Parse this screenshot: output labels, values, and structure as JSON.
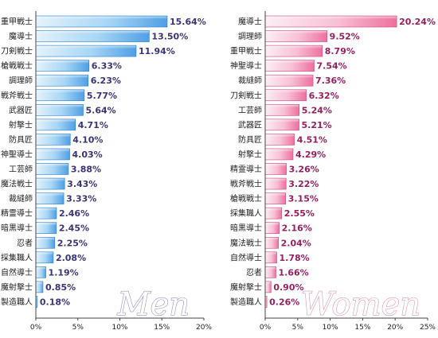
{
  "chart_data": [
    {
      "type": "bar",
      "orientation": "horizontal",
      "title": "Men",
      "accent_color": "#5aa6e6",
      "label_color": "#3a3577",
      "categories": [
        "重甲戦士",
        "魔導士",
        "刀剣戦士",
        "槍戦戦士",
        "調理師",
        "戦斧戦士",
        "武器匠",
        "射撃士",
        "防具匠",
        "神聖導士",
        "工芸師",
        "魔法戦士",
        "裁縫師",
        "精霊導士",
        "暗黒導士",
        "忍者",
        "採集職人",
        "自然導士",
        "魔射撃士",
        "製造職人"
      ],
      "values": [
        15.64,
        13.5,
        11.94,
        6.33,
        6.23,
        5.77,
        5.64,
        4.71,
        4.1,
        4.03,
        3.88,
        3.43,
        3.33,
        2.46,
        2.45,
        2.25,
        2.08,
        1.19,
        0.85,
        0.18
      ],
      "value_labels": [
        "15.64%",
        "13.50%",
        "11.94%",
        "6.33%",
        "6.23%",
        "5.77%",
        "5.64%",
        "4.71%",
        "4.10%",
        "4.03%",
        "3.88%",
        "3.43%",
        "3.33%",
        "2.46%",
        "2.45%",
        "2.25%",
        "2.08%",
        "1.19%",
        "0.85%",
        "0.18%"
      ],
      "xlim": [
        0,
        20
      ],
      "xticks": [
        "0%",
        "5%",
        "10%",
        "15%",
        "20%"
      ],
      "grid": false
    },
    {
      "type": "bar",
      "orientation": "horizontal",
      "title": "Women",
      "accent_color": "#f07aa8",
      "label_color": "#96205f",
      "categories": [
        "魔導士",
        "調理師",
        "重甲戦士",
        "神聖導士",
        "裁縫師",
        "刀剣戦士",
        "工芸師",
        "武器匠",
        "防具匠",
        "射撃士",
        "精霊導士",
        "戦斧戦士",
        "槍戦戦士",
        "採集職人",
        "暗黒導士",
        "魔法戦士",
        "自然導士",
        "忍者",
        "魔射撃士",
        "製造職人"
      ],
      "values": [
        20.24,
        9.52,
        8.79,
        7.54,
        7.36,
        6.32,
        5.24,
        5.21,
        4.51,
        4.29,
        3.26,
        3.22,
        3.15,
        2.55,
        2.16,
        2.04,
        1.78,
        1.66,
        0.9,
        0.26
      ],
      "value_labels": [
        "20.24%",
        "9.52%",
        "8.79%",
        "7.54%",
        "7.36%",
        "6.32%",
        "5.24%",
        "5.21%",
        "4.51%",
        "4.29%",
        "3.26%",
        "3.22%",
        "3.15%",
        "2.55%",
        "2.16%",
        "2.04%",
        "1.78%",
        "1.66%",
        "0.90%",
        "0.26%"
      ],
      "xlim": [
        0,
        25
      ],
      "xticks": [
        "0%",
        "5%",
        "10%",
        "15%",
        "20%",
        "25%"
      ],
      "grid": false
    }
  ]
}
